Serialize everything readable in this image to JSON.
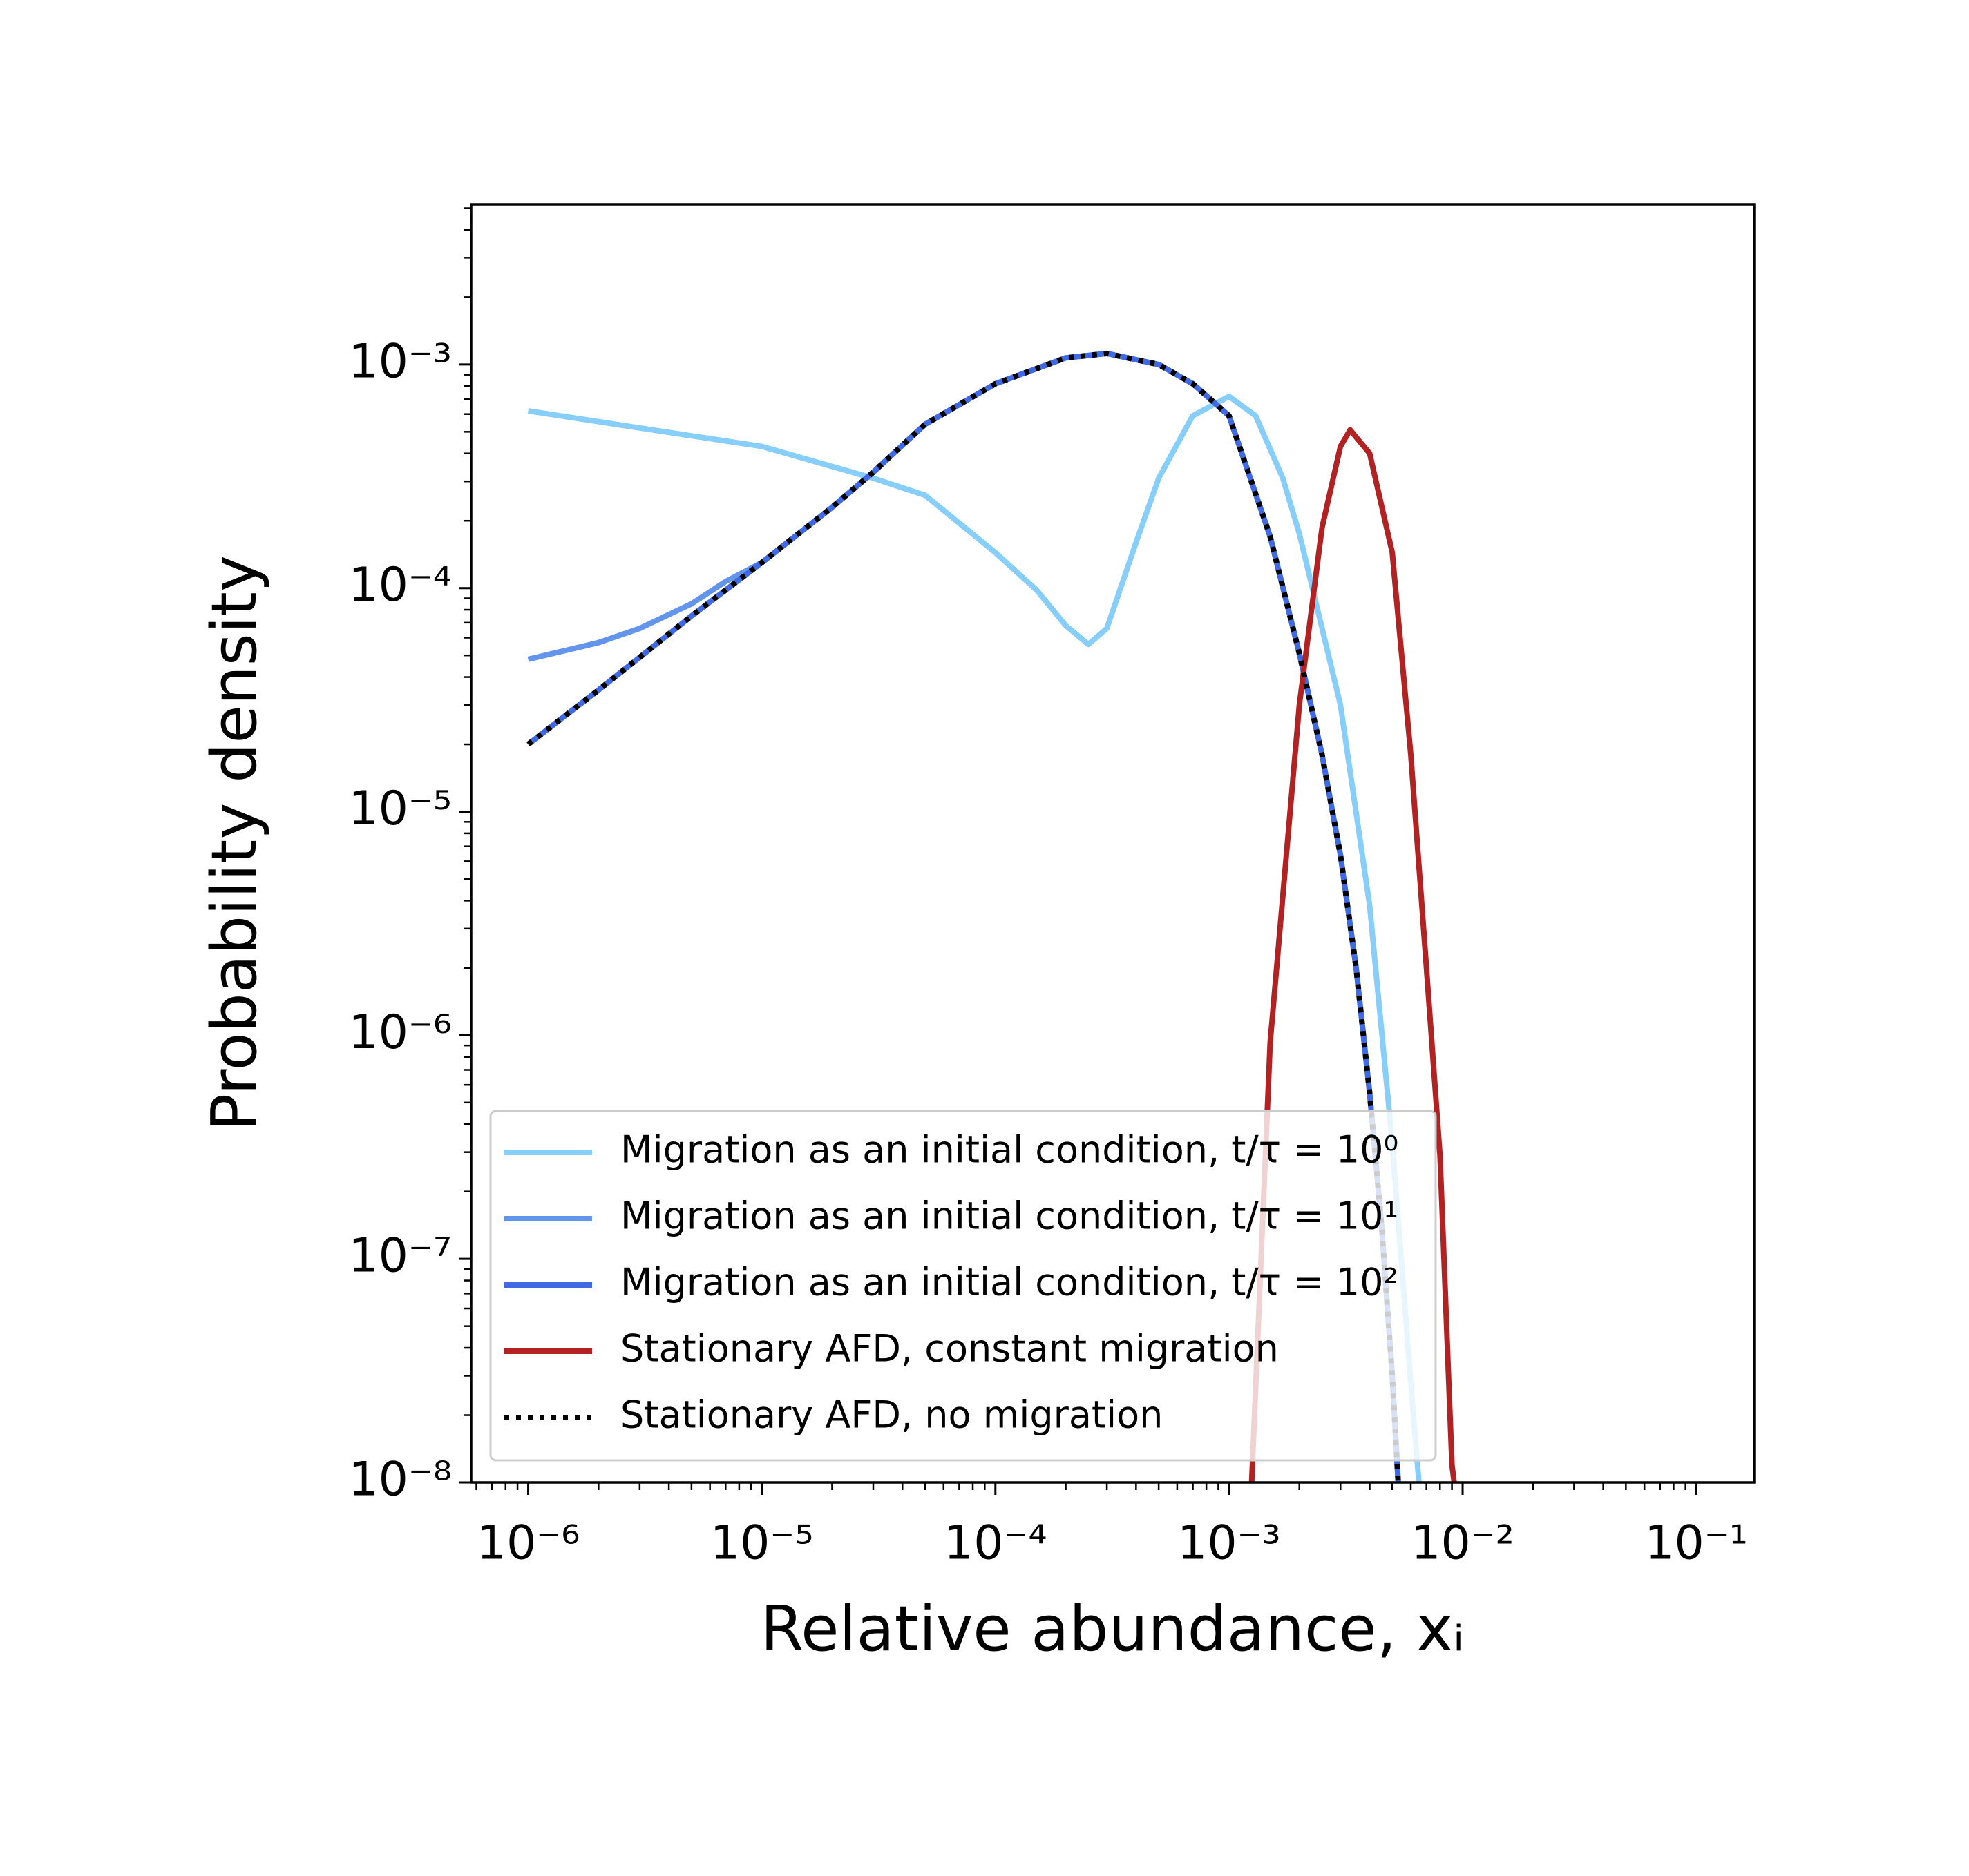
{
  "chart_data": {
    "type": "line",
    "xlabel": "Relative abundance, xᵢ",
    "ylabel": "Probability density",
    "xscale": "log",
    "yscale": "log",
    "xlim": [
      5.7e-07,
      0.177
    ],
    "ylim": [
      1e-08,
      0.0052
    ],
    "xticks": [
      {
        "value": 1e-06,
        "label": "10⁻⁶"
      },
      {
        "value": 1e-05,
        "label": "10⁻⁵"
      },
      {
        "value": 0.0001,
        "label": "10⁻⁴"
      },
      {
        "value": 0.001,
        "label": "10⁻³"
      },
      {
        "value": 0.01,
        "label": "10⁻²"
      },
      {
        "value": 0.1,
        "label": "10⁻¹"
      }
    ],
    "yticks": [
      {
        "value": 1e-08,
        "label": "10⁻⁸"
      },
      {
        "value": 1e-07,
        "label": "10⁻⁷"
      },
      {
        "value": 1e-06,
        "label": "10⁻⁶"
      },
      {
        "value": 1e-05,
        "label": "10⁻⁵"
      },
      {
        "value": 0.0001,
        "label": "10⁻⁴"
      },
      {
        "value": 0.001,
        "label": "10⁻³"
      }
    ],
    "grid": false,
    "legend": "lower left",
    "series": [
      {
        "name": "Migration as an initial condition, t/τ = 10⁰",
        "color": "#87cefa",
        "style": "solid",
        "x": [
          1e-06,
          3e-06,
          1e-05,
          3e-05,
          5e-05,
          0.0001,
          0.00015,
          0.0002,
          0.00025,
          0.0003,
          0.0004,
          0.0005,
          0.0007,
          0.001,
          0.0013,
          0.0017,
          0.002,
          0.003,
          0.004,
          0.005,
          0.006,
          0.0065
        ],
        "values": [
          0.00062,
          0.00052,
          0.00043,
          0.00031,
          0.00026,
          0.000144,
          9.8e-05,
          6.8e-05,
          5.6e-05,
          6.6e-05,
          0.00016,
          0.00031,
          0.00059,
          0.00072,
          0.00059,
          0.00031,
          0.000175,
          3e-05,
          3.8e-06,
          3.3e-07,
          2.8e-08,
          1e-08
        ]
      },
      {
        "name": "Migration as an initial condition, t/τ = 10¹",
        "color": "#6495ed",
        "style": "solid",
        "x": [
          1e-06,
          2e-06,
          3e-06,
          5e-06,
          7e-06,
          1e-05,
          2e-05,
          3e-05,
          5e-05,
          0.0001,
          0.0002,
          0.0003,
          0.0005,
          0.0007,
          0.001,
          0.0015,
          0.002,
          0.0025,
          0.003,
          0.0035,
          0.004,
          0.0045,
          0.005,
          0.0053
        ],
        "values": [
          4.8e-05,
          5.7e-05,
          6.6e-05,
          8.5e-05,
          0.000107,
          0.00013,
          0.00023,
          0.00033,
          0.00054,
          0.00082,
          0.00107,
          0.00112,
          0.001,
          0.00082,
          0.00059,
          0.00017,
          5.1e-05,
          1.8e-05,
          6.4e-06,
          2e-06,
          5.5e-07,
          1.4e-07,
          3e-08,
          1e-08
        ]
      },
      {
        "name": "Migration as an initial condition, t/τ = 10²",
        "color": "#4169e1",
        "style": "solid",
        "x": [
          1e-06,
          2e-06,
          3e-06,
          5e-06,
          1e-05,
          2e-05,
          3e-05,
          5e-05,
          0.0001,
          0.0002,
          0.0003,
          0.0005,
          0.0007,
          0.001,
          0.0015,
          0.002,
          0.0025,
          0.003,
          0.0035,
          0.004,
          0.0045,
          0.005,
          0.0053
        ],
        "values": [
          2e-05,
          3.5e-05,
          4.9e-05,
          7.5e-05,
          0.00013,
          0.00023,
          0.00033,
          0.00054,
          0.00082,
          0.00107,
          0.00112,
          0.001,
          0.00082,
          0.00059,
          0.00017,
          5.1e-05,
          1.8e-05,
          6.4e-06,
          2e-06,
          5.5e-07,
          1.4e-07,
          3e-08,
          1e-08
        ]
      },
      {
        "name": "Stationary AFD, constant migration",
        "color": "#b22222",
        "style": "solid",
        "x": [
          0.00125,
          0.0015,
          0.002,
          0.0025,
          0.003,
          0.0033,
          0.004,
          0.005,
          0.006,
          0.007,
          0.008,
          0.009,
          0.0092
        ],
        "values": [
          1e-08,
          9.3e-07,
          3e-05,
          0.000186,
          0.00043,
          0.00051,
          0.0004,
          0.000144,
          1.8e-05,
          2e-06,
          2.9e-07,
          1.2e-08,
          1e-08
        ]
      },
      {
        "name": "Stationary AFD, no migration",
        "color": "#000000",
        "style": "dotted",
        "x": [
          1e-06,
          2e-06,
          3e-06,
          5e-06,
          1e-05,
          2e-05,
          3e-05,
          5e-05,
          0.0001,
          0.0002,
          0.0003,
          0.0005,
          0.0007,
          0.001,
          0.0015,
          0.002,
          0.0025,
          0.003,
          0.0035,
          0.004,
          0.0045,
          0.005,
          0.0053
        ],
        "values": [
          2e-05,
          3.5e-05,
          4.9e-05,
          7.5e-05,
          0.00013,
          0.00023,
          0.00033,
          0.00054,
          0.00082,
          0.00107,
          0.00112,
          0.001,
          0.00082,
          0.00059,
          0.00017,
          5.1e-05,
          1.8e-05,
          6.4e-06,
          2e-06,
          5.5e-07,
          1.4e-07,
          3e-08,
          1e-08
        ]
      }
    ]
  }
}
